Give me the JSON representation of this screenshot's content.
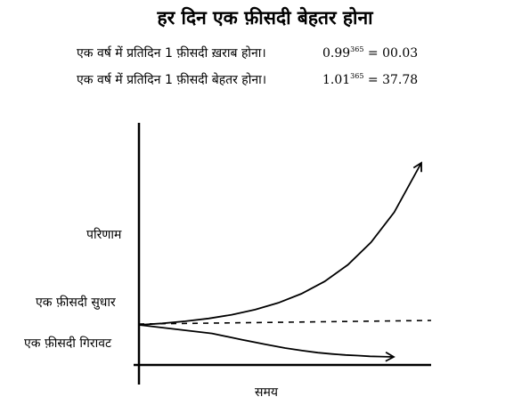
{
  "title": "हर दिन एक फ़ीसदी बेहतर होना",
  "equations": [
    {
      "text": "एक वर्ष में प्रतिदिन 1 फ़ीसदी ख़राब होना।",
      "base": "0.99",
      "exponent": "365",
      "result": "= 00.03"
    },
    {
      "text": "एक वर्ष में प्रतिदिन 1 फ़ीसदी बेहतर होना।",
      "base": "1.01",
      "exponent": "365",
      "result": "= 37.78"
    }
  ],
  "chart_data": {
    "type": "line",
    "xlabel": "समय",
    "ylabel": "परिणाम",
    "x": [
      0,
      30,
      60,
      90,
      120,
      150,
      180,
      210,
      240,
      270,
      300,
      330,
      365
    ],
    "series": [
      {
        "name": "एक फ़ीसदी सुधार",
        "values": [
          1.0,
          1.35,
          1.82,
          2.45,
          3.3,
          4.45,
          5.99,
          8.07,
          10.87,
          14.65,
          19.73,
          26.58,
          37.78
        ]
      },
      {
        "name": "एक फ़ीसदी गिरावट",
        "values": [
          1.0,
          0.74,
          0.55,
          0.41,
          0.3,
          0.22,
          0.16,
          0.12,
          0.09,
          0.07,
          0.05,
          0.04,
          0.03
        ]
      }
    ],
    "baseline": 1.0,
    "grid": false,
    "legend": "inline-left"
  }
}
